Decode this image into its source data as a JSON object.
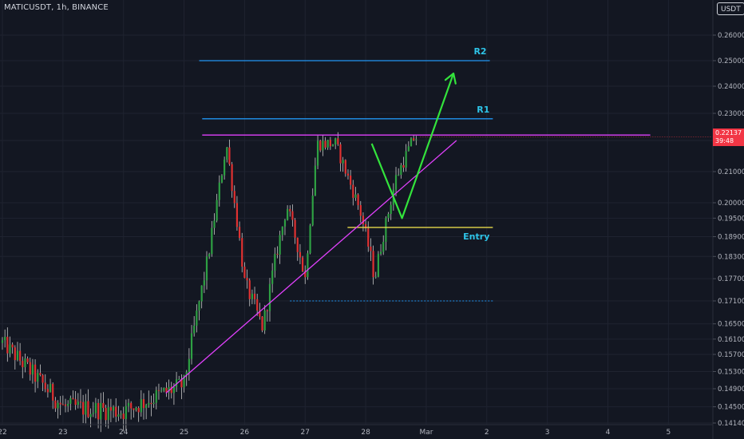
{
  "header": {
    "symbol": "MATICUSDT, 1h, BINANCE",
    "currency": "USDT"
  },
  "last_price": {
    "value": "0.22137",
    "countdown": "39:48"
  },
  "colors": {
    "background": "#131722",
    "grid": "#1f2330",
    "up": "#26a69a",
    "down": "#ef5350",
    "bull_candle": "#2ea043",
    "bear_candle": "#e03131",
    "resistance_lines": "#2196f3",
    "triangle": "#e040fb",
    "entry_line": "#e6d84a",
    "arrow": "#33e33c",
    "label_text": "#2ec4e8",
    "axis_text": "#b2b5be"
  },
  "chart_data": {
    "type": "candlestick",
    "symbol": "MATICUSDT",
    "interval": "1h",
    "exchange": "BINANCE",
    "y_axis_ticks": [
      0.26,
      0.25,
      0.24,
      0.23,
      0.22,
      0.21,
      0.2,
      0.195,
      0.189,
      0.183,
      0.177,
      0.171,
      0.165,
      0.161,
      0.157,
      0.153,
      0.149,
      0.145,
      0.1414
    ],
    "y_axis_labels": [
      "0.26000",
      "0.25000",
      "0.24000",
      "0.23000",
      "0.22000",
      "0.21000",
      "0.20000",
      "0.19500",
      "0.18900",
      "0.18300",
      "0.17700",
      "0.17100",
      "0.16500",
      "0.16100",
      "0.15700",
      "0.15300",
      "0.14900",
      "0.14500",
      "0.14140"
    ],
    "x_axis_labels": [
      "22",
      "23",
      "24",
      "25",
      "26",
      "27",
      "28",
      "Mar",
      "2",
      "3",
      "4",
      "5"
    ],
    "series_trend": [
      {
        "day": 22,
        "price": 0.16
      },
      {
        "day": 23,
        "price": 0.145
      },
      {
        "day": 24,
        "price": 0.144
      },
      {
        "day": 25,
        "price": 0.15
      },
      {
        "day": 25.4,
        "price": 0.183
      },
      {
        "day": 25.7,
        "price": 0.219
      },
      {
        "day": 26.0,
        "price": 0.176
      },
      {
        "day": 26.3,
        "price": 0.164
      },
      {
        "day": 26.7,
        "price": 0.199
      },
      {
        "day": 27.0,
        "price": 0.177
      },
      {
        "day": 27.2,
        "price": 0.219
      },
      {
        "day": 27.5,
        "price": 0.219
      },
      {
        "day": 27.9,
        "price": 0.198
      },
      {
        "day": 28.15,
        "price": 0.177
      },
      {
        "day": 28.5,
        "price": 0.208
      },
      {
        "day": 28.8,
        "price": 0.221
      }
    ],
    "annotations": [
      {
        "name": "R2",
        "type": "horizontal_line",
        "price": 0.25,
        "color": "#2196f3"
      },
      {
        "name": "R1",
        "type": "horizontal_line",
        "price": 0.228,
        "color": "#2196f3"
      },
      {
        "name": "",
        "type": "horizontal_line",
        "price": 0.222,
        "color": "#e040fb"
      },
      {
        "name": "Entry",
        "type": "horizontal_line",
        "price": 0.192,
        "color": "#e6d84a"
      },
      {
        "name": "",
        "type": "dotted_line",
        "price": 0.171,
        "color": "#2196f3"
      },
      {
        "name": "",
        "type": "trendline",
        "from": {
          "day": 24.7,
          "price": 0.148
        },
        "to": {
          "day": 29.5,
          "price": 0.22
        },
        "color": "#e040fb"
      },
      {
        "name": "",
        "type": "path_arrow",
        "points": [
          {
            "day": 28.1,
            "price": 0.219
          },
          {
            "day": 28.6,
            "price": 0.195
          },
          {
            "day": 29.45,
            "price": 0.245
          }
        ],
        "color": "#33e33c"
      }
    ]
  }
}
